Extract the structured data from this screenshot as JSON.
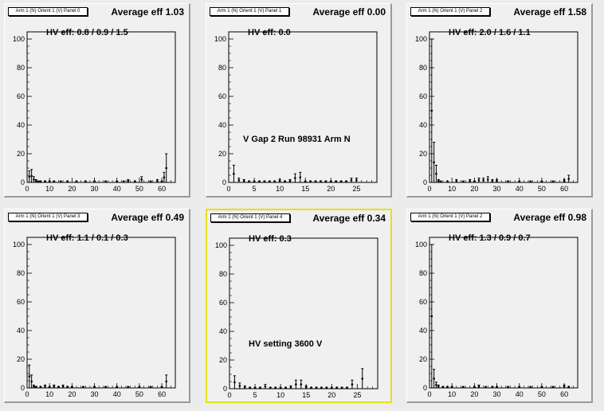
{
  "panels": [
    {
      "tag": "Arm 1 (N) Orient 1 (V) Panel 0",
      "avg": "Average eff 1.03",
      "hv": "HV eff:   0.8 / 0.9 / 1.5",
      "note": "",
      "selected": false,
      "xmax": 66,
      "xticks": [
        0,
        10,
        20,
        30,
        40,
        50,
        60
      ],
      "bars": [
        [
          1,
          8
        ],
        [
          2,
          9
        ],
        [
          3,
          4
        ],
        [
          4,
          2
        ],
        [
          5,
          1
        ],
        [
          6,
          1
        ],
        [
          8,
          1
        ],
        [
          10,
          1
        ],
        [
          12,
          1
        ],
        [
          15,
          1
        ],
        [
          18,
          1
        ],
        [
          22,
          1
        ],
        [
          26,
          1
        ],
        [
          30,
          1
        ],
        [
          35,
          1
        ],
        [
          40,
          1
        ],
        [
          43,
          1
        ],
        [
          45,
          2
        ],
        [
          48,
          1
        ],
        [
          51,
          4
        ],
        [
          55,
          1
        ],
        [
          58,
          2
        ],
        [
          60,
          1
        ],
        [
          61,
          7
        ],
        [
          62,
          20
        ]
      ]
    },
    {
      "tag": "Arm 1 (N) Orient 1 (V) Panel 1",
      "avg": "Average eff 0.00",
      "hv": "HV eff:   0.0",
      "note": "V Gap 2 Run 98931 Arm N",
      "selected": false,
      "xmax": 29,
      "xticks": [
        0,
        5,
        10,
        15,
        20,
        25
      ],
      "bars": [
        [
          1,
          12
        ],
        [
          2,
          3
        ],
        [
          3,
          2
        ],
        [
          4,
          1
        ],
        [
          5,
          1
        ],
        [
          6,
          1
        ],
        [
          7,
          1
        ],
        [
          8,
          1
        ],
        [
          9,
          1
        ],
        [
          10,
          2
        ],
        [
          11,
          1
        ],
        [
          12,
          2
        ],
        [
          13,
          6
        ],
        [
          14,
          7
        ],
        [
          15,
          1
        ],
        [
          16,
          1
        ],
        [
          17,
          1
        ],
        [
          18,
          1
        ],
        [
          19,
          1
        ],
        [
          20,
          1
        ],
        [
          21,
          1
        ],
        [
          22,
          1
        ],
        [
          23,
          1
        ],
        [
          24,
          3
        ],
        [
          25,
          3
        ]
      ]
    },
    {
      "tag": "Arm 1 (N) Orient 1 (V) Panel 2",
      "avg": "Average eff 1.58",
      "hv": "HV eff:   2.0 / 1.6 / 1.1",
      "note": "",
      "selected": false,
      "xmax": 66,
      "xticks": [
        0,
        10,
        20,
        30,
        40,
        50,
        60
      ],
      "bars": [
        [
          1,
          100
        ],
        [
          2,
          28
        ],
        [
          3,
          12
        ],
        [
          4,
          2
        ],
        [
          5,
          1
        ],
        [
          8,
          1
        ],
        [
          12,
          2
        ],
        [
          15,
          1
        ],
        [
          18,
          2
        ],
        [
          20,
          1
        ],
        [
          22,
          3
        ],
        [
          24,
          3
        ],
        [
          26,
          4
        ],
        [
          28,
          2
        ],
        [
          30,
          2
        ],
        [
          35,
          1
        ],
        [
          40,
          1
        ],
        [
          45,
          1
        ],
        [
          50,
          1
        ],
        [
          55,
          1
        ],
        [
          60,
          2
        ],
        [
          62,
          5
        ]
      ]
    },
    {
      "tag": "Arm 1 (N) Orient 1 (V) Panel 3",
      "avg": "Average eff 0.49",
      "hv": "HV eff:   1.1 / 0.1 / 0.3",
      "note": "",
      "selected": false,
      "xmax": 66,
      "xticks": [
        0,
        10,
        20,
        30,
        40,
        50,
        60
      ],
      "bars": [
        [
          1,
          16
        ],
        [
          2,
          9
        ],
        [
          3,
          2
        ],
        [
          4,
          1
        ],
        [
          6,
          1
        ],
        [
          8,
          2
        ],
        [
          10,
          1
        ],
        [
          12,
          2
        ],
        [
          14,
          1
        ],
        [
          16,
          2
        ],
        [
          18,
          1
        ],
        [
          20,
          1
        ],
        [
          25,
          1
        ],
        [
          30,
          1
        ],
        [
          35,
          1
        ],
        [
          40,
          1
        ],
        [
          45,
          1
        ],
        [
          50,
          1
        ],
        [
          55,
          1
        ],
        [
          60,
          1
        ],
        [
          62,
          9
        ]
      ]
    },
    {
      "tag": "Arm 1 (N) Orient 1 (V) Panel 4",
      "avg": "Average eff 0.34",
      "hv": "HV eff:   0.3",
      "note": "HV setting 3600 V",
      "selected": true,
      "xmax": 29,
      "xticks": [
        0,
        5,
        10,
        15,
        20,
        25
      ],
      "bars": [
        [
          1,
          9
        ],
        [
          2,
          4
        ],
        [
          3,
          2
        ],
        [
          4,
          1
        ],
        [
          5,
          1
        ],
        [
          6,
          1
        ],
        [
          7,
          3
        ],
        [
          8,
          1
        ],
        [
          9,
          1
        ],
        [
          10,
          1
        ],
        [
          11,
          1
        ],
        [
          12,
          2
        ],
        [
          13,
          6
        ],
        [
          14,
          6
        ],
        [
          15,
          2
        ],
        [
          16,
          1
        ],
        [
          17,
          1
        ],
        [
          18,
          1
        ],
        [
          19,
          1
        ],
        [
          20,
          1
        ],
        [
          21,
          1
        ],
        [
          22,
          1
        ],
        [
          23,
          1
        ],
        [
          24,
          6
        ],
        [
          26,
          14
        ]
      ]
    },
    {
      "tag": "Arm 1 (N) Orient 1 (V) Panel 2",
      "avg": "Average eff 0.98",
      "hv": "HV eff:   1.3 / 0.9 / 0.7",
      "note": "",
      "selected": false,
      "xmax": 66,
      "xticks": [
        0,
        10,
        20,
        30,
        40,
        50,
        60
      ],
      "bars": [
        [
          1,
          100
        ],
        [
          2,
          13
        ],
        [
          3,
          4
        ],
        [
          4,
          2
        ],
        [
          6,
          1
        ],
        [
          8,
          1
        ],
        [
          10,
          1
        ],
        [
          15,
          1
        ],
        [
          20,
          1
        ],
        [
          22,
          2
        ],
        [
          25,
          1
        ],
        [
          28,
          1
        ],
        [
          30,
          1
        ],
        [
          35,
          1
        ],
        [
          40,
          1
        ],
        [
          45,
          1
        ],
        [
          50,
          1
        ],
        [
          55,
          1
        ],
        [
          60,
          2
        ],
        [
          62,
          1
        ]
      ]
    }
  ],
  "chart_data": {
    "type": "bar",
    "ylim": [
      0,
      105
    ],
    "yticks": [
      0,
      20,
      40,
      60,
      80,
      100
    ],
    "grid": false,
    "series": [
      {
        "panel": "Arm 1 (N) Orient 1 (V) Panel 0",
        "x": [
          1,
          2,
          3,
          4,
          5,
          6,
          8,
          10,
          12,
          15,
          18,
          22,
          26,
          30,
          35,
          40,
          43,
          45,
          48,
          51,
          55,
          58,
          60,
          61,
          62
        ],
        "values": [
          8,
          9,
          4,
          2,
          1,
          1,
          1,
          1,
          1,
          1,
          1,
          1,
          1,
          1,
          1,
          1,
          1,
          2,
          1,
          4,
          1,
          2,
          1,
          7,
          20
        ]
      },
      {
        "panel": "Arm 1 (N) Orient 1 (V) Panel 1",
        "x": [
          1,
          2,
          3,
          4,
          5,
          6,
          7,
          8,
          9,
          10,
          11,
          12,
          13,
          14,
          15,
          16,
          17,
          18,
          19,
          20,
          21,
          22,
          23,
          24,
          25
        ],
        "values": [
          12,
          3,
          2,
          1,
          1,
          1,
          1,
          1,
          1,
          2,
          1,
          2,
          6,
          7,
          1,
          1,
          1,
          1,
          1,
          1,
          1,
          1,
          1,
          3,
          3
        ]
      },
      {
        "panel": "Arm 1 (N) Orient 1 (V) Panel 2",
        "x": [
          1,
          2,
          3,
          4,
          5,
          8,
          12,
          15,
          18,
          20,
          22,
          24,
          26,
          28,
          30,
          35,
          40,
          45,
          50,
          55,
          60,
          62
        ],
        "values": [
          100,
          28,
          12,
          2,
          1,
          1,
          2,
          1,
          2,
          1,
          3,
          3,
          4,
          2,
          2,
          1,
          1,
          1,
          1,
          1,
          2,
          5
        ]
      },
      {
        "panel": "Arm 1 (N) Orient 1 (V) Panel 3",
        "x": [
          1,
          2,
          3,
          4,
          6,
          8,
          10,
          12,
          14,
          16,
          18,
          20,
          25,
          30,
          35,
          40,
          45,
          50,
          55,
          60,
          62
        ],
        "values": [
          16,
          9,
          2,
          1,
          1,
          2,
          1,
          2,
          1,
          2,
          1,
          1,
          1,
          1,
          1,
          1,
          1,
          1,
          1,
          1,
          9
        ]
      },
      {
        "panel": "Arm 1 (N) Orient 1 (V) Panel 4",
        "x": [
          1,
          2,
          3,
          4,
          5,
          6,
          7,
          8,
          9,
          10,
          11,
          12,
          13,
          14,
          15,
          16,
          17,
          18,
          19,
          20,
          21,
          22,
          23,
          24,
          26
        ],
        "values": [
          9,
          4,
          2,
          1,
          1,
          1,
          3,
          1,
          1,
          1,
          1,
          2,
          6,
          6,
          2,
          1,
          1,
          1,
          1,
          1,
          1,
          1,
          1,
          6,
          14
        ]
      },
      {
        "panel": "Arm 1 (N) Orient 1 (V) Panel 2",
        "x": [
          1,
          2,
          3,
          4,
          6,
          8,
          10,
          15,
          20,
          22,
          25,
          28,
          30,
          35,
          40,
          45,
          50,
          55,
          60,
          62
        ],
        "values": [
          100,
          13,
          4,
          2,
          1,
          1,
          1,
          1,
          1,
          2,
          1,
          1,
          1,
          1,
          1,
          1,
          1,
          1,
          2,
          1
        ]
      }
    ]
  }
}
